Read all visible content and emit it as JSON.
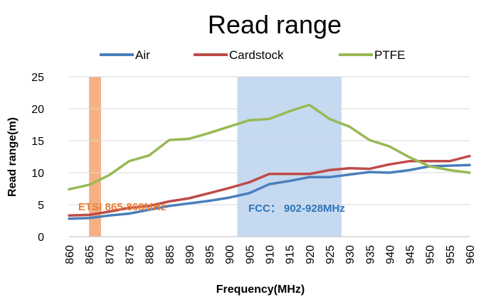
{
  "chart_data": {
    "type": "line",
    "title": "Read range",
    "xlabel": "Frequency(MHz)",
    "ylabel": "Read range(m)",
    "ylim": [
      0,
      25
    ],
    "xlim": [
      860,
      960
    ],
    "grid": true,
    "legend_position": "top",
    "x": [
      860,
      865,
      870,
      875,
      880,
      885,
      890,
      895,
      900,
      905,
      910,
      915,
      920,
      925,
      930,
      935,
      940,
      945,
      950,
      955,
      960
    ],
    "x_tick_labels": [
      "860",
      "865",
      "870",
      "875",
      "880",
      "885",
      "890",
      "895",
      "900",
      "905",
      "910",
      "915",
      "920",
      "925",
      "930",
      "935",
      "940",
      "945",
      "950",
      "955",
      "960"
    ],
    "y_ticks": [
      0,
      5,
      10,
      15,
      20,
      25
    ],
    "series": [
      {
        "name": "Air",
        "color": "#4A7EBB",
        "values": [
          2.8,
          2.9,
          3.3,
          3.6,
          4.2,
          4.8,
          5.2,
          5.6,
          6.1,
          6.8,
          8.2,
          8.7,
          9.3,
          9.3,
          9.7,
          10.1,
          10.0,
          10.4,
          11.0,
          11.1,
          11.2
        ]
      },
      {
        "name": "Cardstock",
        "color": "#BE4B48",
        "values": [
          3.3,
          3.4,
          3.9,
          4.5,
          4.8,
          5.5,
          6.0,
          6.8,
          7.6,
          8.5,
          9.8,
          9.8,
          9.8,
          10.4,
          10.7,
          10.6,
          11.3,
          11.8,
          11.8,
          11.8,
          12.6
        ]
      },
      {
        "name": "PTFE",
        "color": "#98B954",
        "values": [
          7.4,
          8.1,
          9.6,
          11.8,
          12.7,
          15.1,
          15.3,
          16.2,
          17.2,
          18.2,
          18.4,
          19.6,
          20.6,
          18.4,
          17.2,
          15.1,
          14.1,
          12.4,
          11.0,
          10.4,
          10.0
        ]
      }
    ],
    "bands": [
      {
        "name": "ETSI",
        "label": "ETSI 865-868MHz",
        "from": 865,
        "to": 868,
        "color": "#F4B183",
        "label_color": "#ED7D31"
      },
      {
        "name": "FCC",
        "label": "FCC： 902-928MHz",
        "from": 902,
        "to": 928,
        "color": "#C5D9F1",
        "label_color": "#2E75B6"
      }
    ]
  }
}
